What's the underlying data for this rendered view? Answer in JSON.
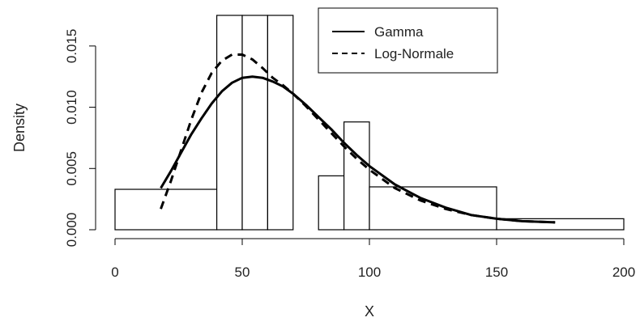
{
  "chart_data": {
    "type": "histogram",
    "xlabel": "X",
    "ylabel": "Density",
    "xlim": [
      0,
      200
    ],
    "ylim": [
      0,
      0.016
    ],
    "x_ticks": [
      0,
      50,
      100,
      150,
      200
    ],
    "y_ticks": [
      0.0,
      0.005,
      0.01,
      0.015
    ],
    "y_tick_labels": [
      "0.000",
      "0.005",
      "0.010",
      "0.015"
    ],
    "bins": [
      {
        "x0": 0,
        "x1": 40,
        "density": 0.0033
      },
      {
        "x0": 40,
        "x1": 50,
        "density": 0.0175
      },
      {
        "x0": 50,
        "x1": 60,
        "density": 0.0175
      },
      {
        "x0": 60,
        "x1": 70,
        "density": 0.0175
      },
      {
        "x0": 80,
        "x1": 90,
        "density": 0.0044
      },
      {
        "x0": 90,
        "x1": 100,
        "density": 0.0088
      },
      {
        "x0": 100,
        "x1": 150,
        "density": 0.0035
      },
      {
        "x0": 150,
        "x1": 200,
        "density": 0.0009
      }
    ],
    "series": [
      {
        "name": "Gamma",
        "line_style": "solid",
        "x": [
          18,
          22,
          26,
          30,
          34,
          38,
          42,
          46,
          50,
          54,
          58,
          62,
          66,
          70,
          75,
          80,
          85,
          90,
          95,
          100,
          110,
          120,
          130,
          140,
          150,
          160,
          173
        ],
        "y": [
          0.0034,
          0.0048,
          0.0063,
          0.0078,
          0.0091,
          0.0103,
          0.0113,
          0.012,
          0.0124,
          0.0125,
          0.0124,
          0.0121,
          0.0117,
          0.0111,
          0.0102,
          0.0092,
          0.0082,
          0.0071,
          0.0061,
          0.0052,
          0.0037,
          0.0026,
          0.0018,
          0.0012,
          0.0009,
          0.0007,
          0.0006
        ]
      },
      {
        "name": "Log-Normale",
        "line_style": "dashed",
        "x": [
          18,
          22,
          26,
          30,
          34,
          38,
          42,
          46,
          50,
          54,
          58,
          62,
          66,
          70,
          75,
          80,
          85,
          90,
          95,
          100,
          110,
          120,
          130,
          140,
          150,
          160,
          173
        ],
        "y": [
          0.0017,
          0.004,
          0.0065,
          0.009,
          0.0112,
          0.0128,
          0.0138,
          0.0143,
          0.0143,
          0.0139,
          0.0132,
          0.0124,
          0.0118,
          0.0111,
          0.0101,
          0.009,
          0.0079,
          0.0068,
          0.0058,
          0.0049,
          0.0034,
          0.0024,
          0.0017,
          0.0012,
          0.0009,
          0.0007,
          0.0006
        ]
      }
    ],
    "legend": {
      "placement": "top-right",
      "entries": [
        {
          "label": "Gamma",
          "line_style": "solid"
        },
        {
          "label": "Log-Normale",
          "line_style": "dashed"
        }
      ]
    },
    "grid": false
  }
}
